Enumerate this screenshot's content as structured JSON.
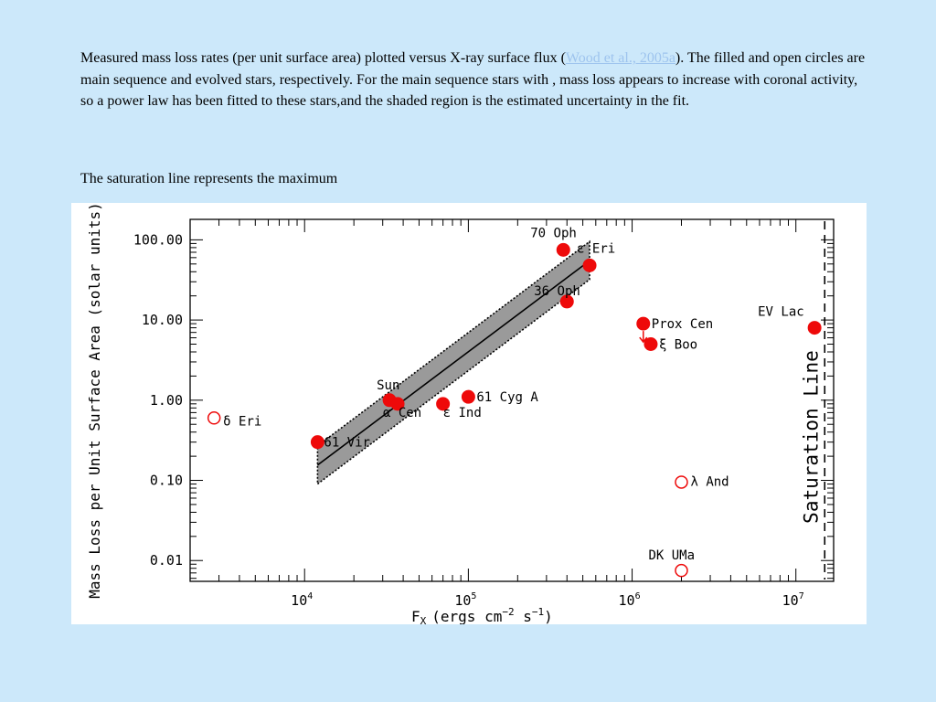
{
  "caption": {
    "text_before_link": "Measured mass loss rates (per unit surface area) plotted versus X-ray surface flux (",
    "link_text": "Wood et al., 2005a",
    "text_after_link": "). The filled and open circles are main sequence and evolved stars, respectively. For the main sequence stars with  , mass loss appears to increase with coronal activity, so a power law has been fitted to these stars,and the shaded region is the estimated uncertainty in the fit."
  },
  "caption_second": "The saturation line represents the maximum",
  "chart_data": {
    "type": "scatter",
    "title": "",
    "xlabel": "F",
    "xlabel_sub": "X",
    "xlabel_units": "(ergs cm",
    "xlabel_exp1": "−2",
    "xlabel_mid": " s",
    "xlabel_exp2": "−1",
    "xlabel_close": ")",
    "ylabel": "Mass Loss per Unit Surface Area (solar units)",
    "x_scale": "log",
    "y_scale": "log",
    "xlim": [
      2000,
      17000000
    ],
    "ylim": [
      0.0055,
      180
    ],
    "x_ticks": [
      {
        "base": "10",
        "exp": "4",
        "value": 10000
      },
      {
        "base": "10",
        "exp": "5",
        "value": 100000
      },
      {
        "base": "10",
        "exp": "6",
        "value": 1000000
      },
      {
        "base": "10",
        "exp": "7",
        "value": 10000000
      }
    ],
    "y_ticks": [
      {
        "label": "100.00",
        "value": 100
      },
      {
        "label": "10.00",
        "value": 10
      },
      {
        "label": "1.00",
        "value": 1
      },
      {
        "label": "0.10",
        "value": 0.1
      },
      {
        "label": "0.01",
        "value": 0.01
      }
    ],
    "saturation_line": {
      "x": 15000000,
      "label": "Saturation Line"
    },
    "colors": {
      "point": "#ee0a0a",
      "band": "#9a9a9a"
    },
    "stars": [
      {
        "name": "70 Oph",
        "x": 380000,
        "y": 75,
        "type": "main-sequence"
      },
      {
        "name": "ε Eri",
        "x": 550000,
        "y": 48,
        "type": "main-sequence"
      },
      {
        "name": "36 Oph",
        "x": 400000,
        "y": 17,
        "type": "main-sequence"
      },
      {
        "name": "Sun",
        "x": 33000,
        "y": 1.0,
        "type": "main-sequence"
      },
      {
        "name": "α Cen",
        "x": 37000,
        "y": 0.9,
        "type": "main-sequence"
      },
      {
        "name": "ε Ind",
        "x": 70000,
        "y": 0.9,
        "type": "main-sequence"
      },
      {
        "name": "61 Cyg A",
        "x": 100000,
        "y": 1.1,
        "type": "main-sequence"
      },
      {
        "name": "61 Vir",
        "x": 12000,
        "y": 0.3,
        "type": "main-sequence"
      },
      {
        "name": "Prox Cen",
        "x": 1170000,
        "y": 9,
        "type": "main-sequence"
      },
      {
        "name": "ξ Boo",
        "x": 1300000,
        "y": 5,
        "type": "main-sequence"
      },
      {
        "name": "EV Lac",
        "x": 13000000,
        "y": 8,
        "type": "main-sequence"
      },
      {
        "name": "δ Eri",
        "x": 2800,
        "y": 0.6,
        "type": "evolved"
      },
      {
        "name": "λ And",
        "x": 2000000,
        "y": 0.095,
        "type": "evolved"
      },
      {
        "name": "DK UMa",
        "x": 2000000,
        "y": 0.0075,
        "type": "evolved"
      }
    ]
  }
}
